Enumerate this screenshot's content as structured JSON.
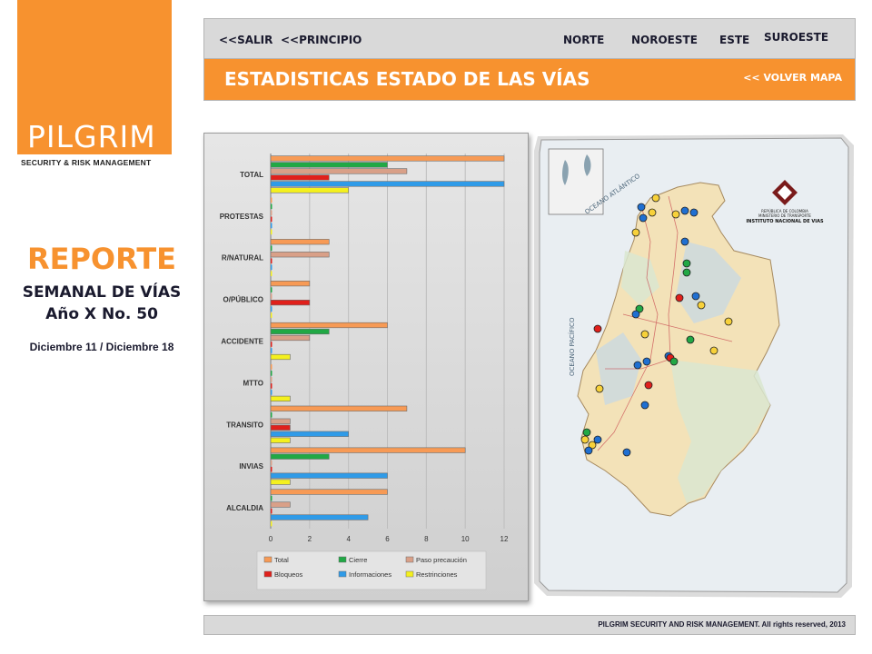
{
  "brand": {
    "logo_text": "PILGRIM",
    "tagline": "SECURITY & RISK MANAGEMENT",
    "orange": "#f7922f"
  },
  "report": {
    "title": "REPORTE",
    "subtitle_line1": "SEMANAL DE VÍAS",
    "subtitle_line2": "Año X No. 50",
    "dates": "Diciembre 11 / Diciembre 18"
  },
  "nav": {
    "salir": "<<SALIR",
    "principio": "<<PRINCIPIO",
    "norte": "NORTE",
    "noroeste": "NOROESTE",
    "este": "ESTE",
    "suroeste": "SUROESTE"
  },
  "header": {
    "title": "ESTADISTICAS  ESTADO DE LAS VÍAS",
    "back_link": "<< VOLVER MAPA"
  },
  "map": {
    "ocean_atlantic": "OCEANO ATLÁNTICO",
    "ocean_pacific": "OCEANO PACÍFICO",
    "inst_line1": "REPÚBLICA DE COLOMBIA",
    "inst_line2": "MINISTERIO DE TRANSPORTE",
    "inst_line3": "INSTITUTO NACIONAL DE VIAS",
    "marker_colors": {
      "blue": "#1f6fd1",
      "yellow": "#f7d13a",
      "green": "#21a845",
      "red": "#e0201b"
    }
  },
  "footer": {
    "text": "PILGRIM SECURITY AND RISK MANAGEMENT. All rights reserved, 2013"
  },
  "chart_data": {
    "type": "bar",
    "orientation": "horizontal",
    "categories": [
      "TOTAL",
      "PROTESTAS",
      "R/NATURAL",
      "O/PÚBLICO",
      "ACCIDENTE",
      "MTTO",
      "TRANSITO",
      "INVIAS",
      "ALCALDIA"
    ],
    "series": [
      {
        "name": "Total",
        "color": "#f79a55",
        "values": [
          12,
          0,
          3,
          2,
          6,
          0,
          7,
          10,
          6
        ]
      },
      {
        "name": "Cierre",
        "color": "#21a845",
        "values": [
          6,
          0,
          0,
          0,
          3,
          0,
          0,
          3,
          0
        ]
      },
      {
        "name": "Paso precaución",
        "color": "#d9a088",
        "values": [
          7,
          0,
          3,
          0,
          2,
          0,
          1,
          0,
          1
        ]
      },
      {
        "name": "Bloqueos",
        "color": "#e0201b",
        "values": [
          3,
          0,
          0,
          2,
          0,
          0,
          1,
          0,
          0
        ]
      },
      {
        "name": "Informaciones",
        "color": "#2f9be8",
        "values": [
          12,
          0,
          0,
          0,
          0,
          0,
          4,
          6,
          5
        ]
      },
      {
        "name": "Restrinciones",
        "color": "#f4f01e",
        "values": [
          4,
          0,
          0,
          0,
          1,
          1,
          1,
          1,
          0
        ]
      }
    ],
    "xlim": [
      0,
      12
    ],
    "xticks": [
      0,
      2,
      4,
      6,
      8,
      10,
      12
    ],
    "legend_position": "bottom",
    "grid": true
  }
}
